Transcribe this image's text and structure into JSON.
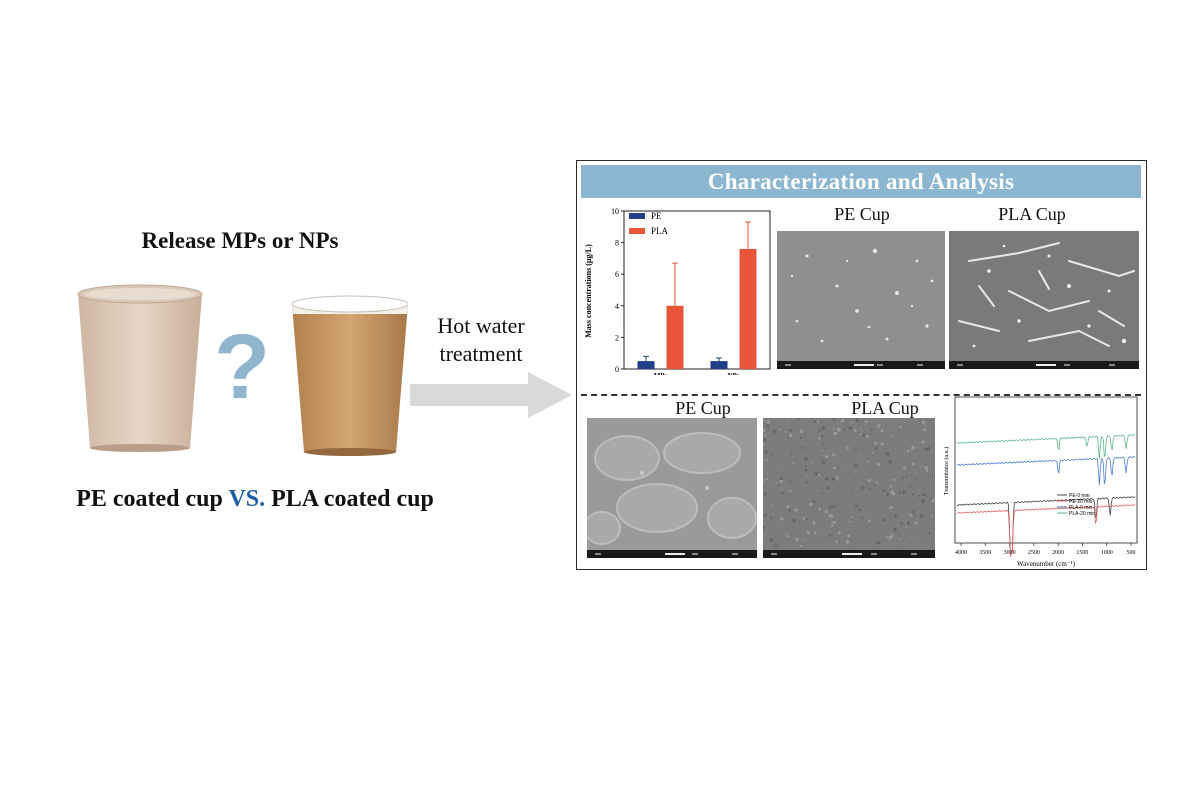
{
  "left": {
    "title": "Release MPs or NPs",
    "compare_left": "PE coated cup",
    "compare_vs": "VS.",
    "compare_right": "PLA coated cup",
    "question_mark": "?"
  },
  "arrow": {
    "line1": "Hot water",
    "line2": "treatment"
  },
  "panel": {
    "title": "Characterization and Analysis",
    "top_labels": [
      "PE Cup",
      "PLA Cup"
    ],
    "bottom_labels": [
      "PE Cup",
      "PLA Cup"
    ]
  },
  "colors": {
    "header_bg": "#8db7d1",
    "vs": "#1f5fa8",
    "pe_bar": "#1f3f8a",
    "pla_bar": "#e8553a"
  },
  "chart_data": [
    {
      "type": "bar",
      "categories": [
        "MPs",
        "NPs"
      ],
      "series": [
        {
          "name": "PE",
          "values": [
            0.5,
            0.5
          ],
          "errors": [
            0.3,
            0.2
          ]
        },
        {
          "name": "PLA",
          "values": [
            4.0,
            7.6
          ],
          "errors": [
            2.7,
            1.7
          ]
        }
      ],
      "xlabel": "",
      "ylabel": "Mass concentrations (µg/L)",
      "ylim": [
        0,
        10
      ],
      "yticks": [
        "0",
        "2",
        "4",
        "6",
        "8",
        "10"
      ],
      "legend": "top-left"
    },
    {
      "type": "line",
      "xlabel": "Wavenumber (cm⁻¹)",
      "ylabel": "Transmittance (a.u.)",
      "xlim": [
        4000,
        500
      ],
      "xticks": [
        "4000",
        "3500",
        "3000",
        "2500",
        "2000",
        "1500",
        "1000",
        "500"
      ],
      "series": [
        {
          "name": "PE-0 min",
          "color": "#444444"
        },
        {
          "name": "PE-20 min",
          "color": "#e06060"
        },
        {
          "name": "PLA-0 min",
          "color": "#4a7fd0"
        },
        {
          "name": "PLA-20 min",
          "color": "#5cb88a"
        }
      ]
    }
  ]
}
